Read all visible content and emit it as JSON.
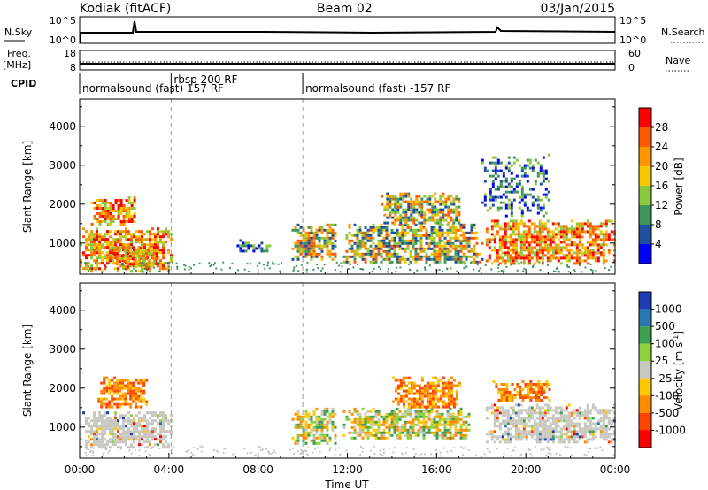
{
  "header": {
    "station": "Kodiak (fitACF)",
    "beam": "Beam 02",
    "date": "03/Jan/2015"
  },
  "params": {
    "nsky_label": "N.Sky",
    "nsearch_label": "N.Search",
    "freq_label_1": "Freq.",
    "freq_label_2": "[MHz]",
    "nave_label": "Nave",
    "cpid_label": "CPID",
    "nsky_ticks": [
      "10^5",
      "10^0"
    ],
    "nsearch_ticks": [
      "10^5",
      "10^0"
    ],
    "freq_ticks": [
      "18",
      "8"
    ],
    "nave_ticks": [
      "60",
      "0"
    ]
  },
  "cpid": [
    {
      "label": "normalsound (fast) 157 RF",
      "start_hour": 0,
      "end_hour": 4.1
    },
    {
      "label": "rbsp 200 RF",
      "start_hour": 4.1,
      "end_hour": 10.0
    },
    {
      "label": "normalsound (fast) -157 RF",
      "start_hour": 10.0,
      "end_hour": 24
    }
  ],
  "chart_data": [
    {
      "type": "heatmap",
      "quantity": "power",
      "ylabel": "Slant Range [km]",
      "yticks": [
        1000,
        2000,
        3000,
        4000
      ],
      "ylim": [
        200,
        4700
      ],
      "xlim": [
        0,
        24
      ],
      "colorbar": {
        "label": "Power [dB]",
        "ticks": [
          "28",
          "24",
          "20",
          "16",
          "12",
          "8",
          "4"
        ],
        "colors": [
          "#ff0000",
          "#ff5a00",
          "#ff9600",
          "#f5c800",
          "#8cc83c",
          "#3c965a",
          "#1e50a0",
          "#0000ff"
        ]
      },
      "regions": [
        {
          "start_hour": 0.0,
          "end_hour": 4.1,
          "range_min": 300,
          "range_max": 1400,
          "level": "high"
        },
        {
          "start_hour": 0.5,
          "end_hour": 2.5,
          "range_min": 1500,
          "range_max": 2200,
          "level": "high"
        },
        {
          "start_hour": 1.5,
          "end_hour": 3.5,
          "range_min": 400,
          "range_max": 900,
          "level": "high"
        },
        {
          "start_hour": 6.8,
          "end_hour": 8.5,
          "range_min": 800,
          "range_max": 1100,
          "level": "low"
        },
        {
          "start_hour": 9.5,
          "end_hour": 11.5,
          "range_min": 600,
          "range_max": 1500,
          "level": "mid"
        },
        {
          "start_hour": 11.8,
          "end_hour": 18.0,
          "range_min": 500,
          "range_max": 1500,
          "level": "mid"
        },
        {
          "start_hour": 13.5,
          "end_hour": 17.0,
          "range_min": 1500,
          "range_max": 2300,
          "level": "mid"
        },
        {
          "start_hour": 18.2,
          "end_hour": 24.0,
          "range_min": 500,
          "range_max": 1600,
          "level": "high"
        },
        {
          "start_hour": 18.0,
          "end_hour": 21.0,
          "range_min": 1700,
          "range_max": 3300,
          "level": "low"
        }
      ]
    },
    {
      "type": "heatmap",
      "quantity": "velocity",
      "ylabel": "Slant Range [km]",
      "yticks": [
        1000,
        2000,
        3000,
        4000
      ],
      "ylim": [
        200,
        4700
      ],
      "xlim": [
        0,
        24
      ],
      "xticks": [
        "00:00",
        "04:00",
        "08:00",
        "12:00",
        "16:00",
        "20:00",
        "00:00"
      ],
      "xlabel": "Time UT",
      "colorbar": {
        "label": "Velocity [m s^-1]",
        "ticks": [
          "1000",
          "500",
          "100",
          "25",
          "-25",
          "-100",
          "-500",
          "-1000"
        ],
        "colors": [
          "#1e3cb4",
          "#2878b4",
          "#3ca050",
          "#8cd23c",
          "#c8c8c0",
          "#ffc800",
          "#ff8c00",
          "#ff4600",
          "#ff0000"
        ]
      },
      "regions": [
        {
          "start_hour": 0.0,
          "end_hour": 4.1,
          "range_min": 500,
          "range_max": 1400,
          "level": "ground"
        },
        {
          "start_hour": 0.8,
          "end_hour": 3.0,
          "range_min": 1500,
          "range_max": 2300,
          "level": "negative"
        },
        {
          "start_hour": 9.5,
          "end_hour": 11.5,
          "range_min": 600,
          "range_max": 1500,
          "level": "mixed"
        },
        {
          "start_hour": 11.8,
          "end_hour": 17.5,
          "range_min": 700,
          "range_max": 1500,
          "level": "mixed"
        },
        {
          "start_hour": 14.0,
          "end_hour": 17.0,
          "range_min": 1500,
          "range_max": 2300,
          "level": "negative"
        },
        {
          "start_hour": 18.2,
          "end_hour": 24.0,
          "range_min": 600,
          "range_max": 1600,
          "level": "ground"
        },
        {
          "start_hour": 18.5,
          "end_hour": 21.0,
          "range_min": 1700,
          "range_max": 2200,
          "level": "negative"
        }
      ]
    }
  ]
}
